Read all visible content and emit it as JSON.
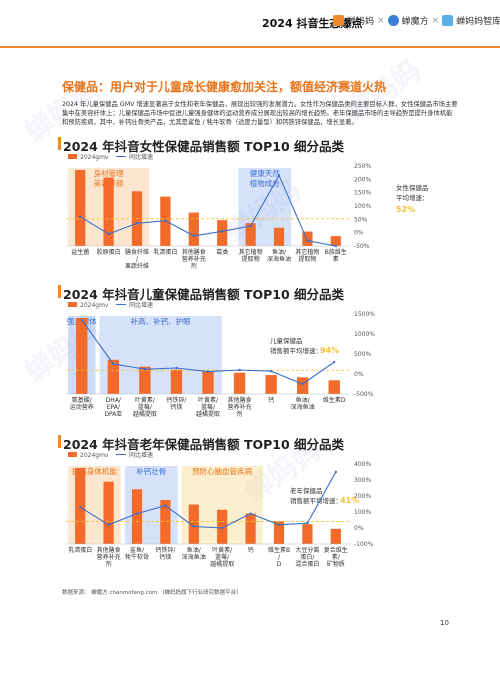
{
  "header": {
    "report_title": "2024 抖音生态爆点",
    "brand_1": "蝉妈妈",
    "brand_2": "蝉魔方",
    "brand_3": "蝉妈妈智库",
    "accent_color": "#f08a2c"
  },
  "section": {
    "title": "保健品：用户对于儿童成长健康愈加关注，额值经济赛道火热",
    "intro": "2024 年儿童保健品 GMV 增速显著高于女性和老年保健品，展现出较强的发展潜力。女性作为保健品类的主要目标人群，女性保健品市场主要集中在美容纤体上；儿童保健品市场中促进儿童强身健体的运动营养成分展现出较高的增长趋势。老年保健品市场的主导趋势是提升身体机能和预防疾病，其中，补钙壮骨类产品，尤其是鲨鱼 / 牦牛软骨（适度力量型）和钙铁锌保健品，增长显著。"
  },
  "chart_data": [
    {
      "type": "bar",
      "title": "2024 年抖音女性保健品销售额 TOP10 细分品类",
      "legend": [
        "2024gmv",
        "同比增速"
      ],
      "categories": [
        "益生菌",
        "胶原蛋白",
        "膳食纤维/果蔬纤维",
        "乳清蛋白",
        "其他膳食营养补充剂",
        "葛类",
        "其它植物提取物",
        "鱼油/深海鱼油",
        "其它植物提取物",
        "B族维生素"
      ],
      "series": [
        {
          "name": "2024gmv",
          "values": [
            100,
            90,
            72,
            65,
            44,
            34,
            30,
            24,
            19,
            13
          ]
        },
        {
          "name": "同比增速",
          "values": [
            60,
            -5,
            35,
            45,
            -12,
            5,
            25,
            215,
            -30,
            -50
          ]
        }
      ],
      "y2ticks": [
        "250%",
        "200%",
        "150%",
        "100%",
        "50%",
        "0%",
        "-50%"
      ],
      "y2lim": [
        -50,
        250
      ],
      "annotations": [
        "身材管理",
        "美容养颜",
        "健康天然",
        "植物成分",
        "女性保健品",
        "平均增速：",
        "52%"
      ],
      "avg_growth": 52
    },
    {
      "type": "bar",
      "title": "2024 年抖音儿童保健品销售额 TOP10 细分品类",
      "legend": [
        "2024gmv",
        "同比增速"
      ],
      "categories": [
        "氨基酸/运动营养",
        "DHA/EPA/DPA亚麻酸",
        "叶黄素/蓝莓/越橘提取物",
        "钙铁锌/钙镁",
        "叶黄素/蓝莓/越橘提取物",
        "其他膳食营养补充剂",
        "钙",
        "鱼油/深海鱼油",
        "维生素D"
      ],
      "series": [
        {
          "name": "2024gmv",
          "values": [
            100,
            45,
            36,
            32,
            30,
            28,
            25,
            22,
            18
          ]
        },
        {
          "name": "同比增速",
          "values": [
            1350,
            250,
            120,
            150,
            60,
            100,
            70,
            -250,
            300
          ]
        }
      ],
      "y2ticks": [
        "1500%",
        "1000%",
        "500%",
        "0%",
        "-500%"
      ],
      "y2lim": [
        -500,
        1500
      ],
      "annotations": [
        "强身健体",
        "补高、补钙、护眼",
        "儿童保健品",
        "销售额平均增速：",
        "94%"
      ],
      "avg_growth": 94
    },
    {
      "type": "bar",
      "title": "2024 年抖音老年保健品销售额 TOP10 细分品类",
      "legend": [
        "2024gmv",
        "同比增速"
      ],
      "categories": [
        "乳清蛋白",
        "其他膳食营养补充剂",
        "鲨鱼/牦牛软骨",
        "钙铁锌/钙镁",
        "鱼油/深海鱼油",
        "叶黄素/蓝莓/越橘提取物",
        "钙",
        "维生素B/D",
        "大豆分离蛋白/混合蛋白",
        "复合维生素/矿物质"
      ],
      "series": [
        {
          "name": "2024gmv",
          "values": [
            100,
            82,
            72,
            58,
            52,
            45,
            40,
            30,
            26,
            20
          ]
        },
        {
          "name": "同比增速",
          "values": [
            130,
            20,
            90,
            140,
            10,
            0,
            90,
            20,
            30,
            350
          ]
        }
      ],
      "y2ticks": [
        "400%",
        "300%",
        "200%",
        "100%",
        "0%",
        "-100%"
      ],
      "y2lim": [
        -100,
        400
      ],
      "annotations": [
        "提高身体机能",
        "补钙壮骨",
        "预防心脑血管疾病",
        "老年保健品",
        "销售额平均增速：",
        "41%"
      ],
      "avg_growth": 41
    }
  ],
  "footer": {
    "source": "数据来源： 蝉魔方 chanmofang.com （蝉妈妈旗下行业研究数据平台）",
    "page": "10"
  }
}
